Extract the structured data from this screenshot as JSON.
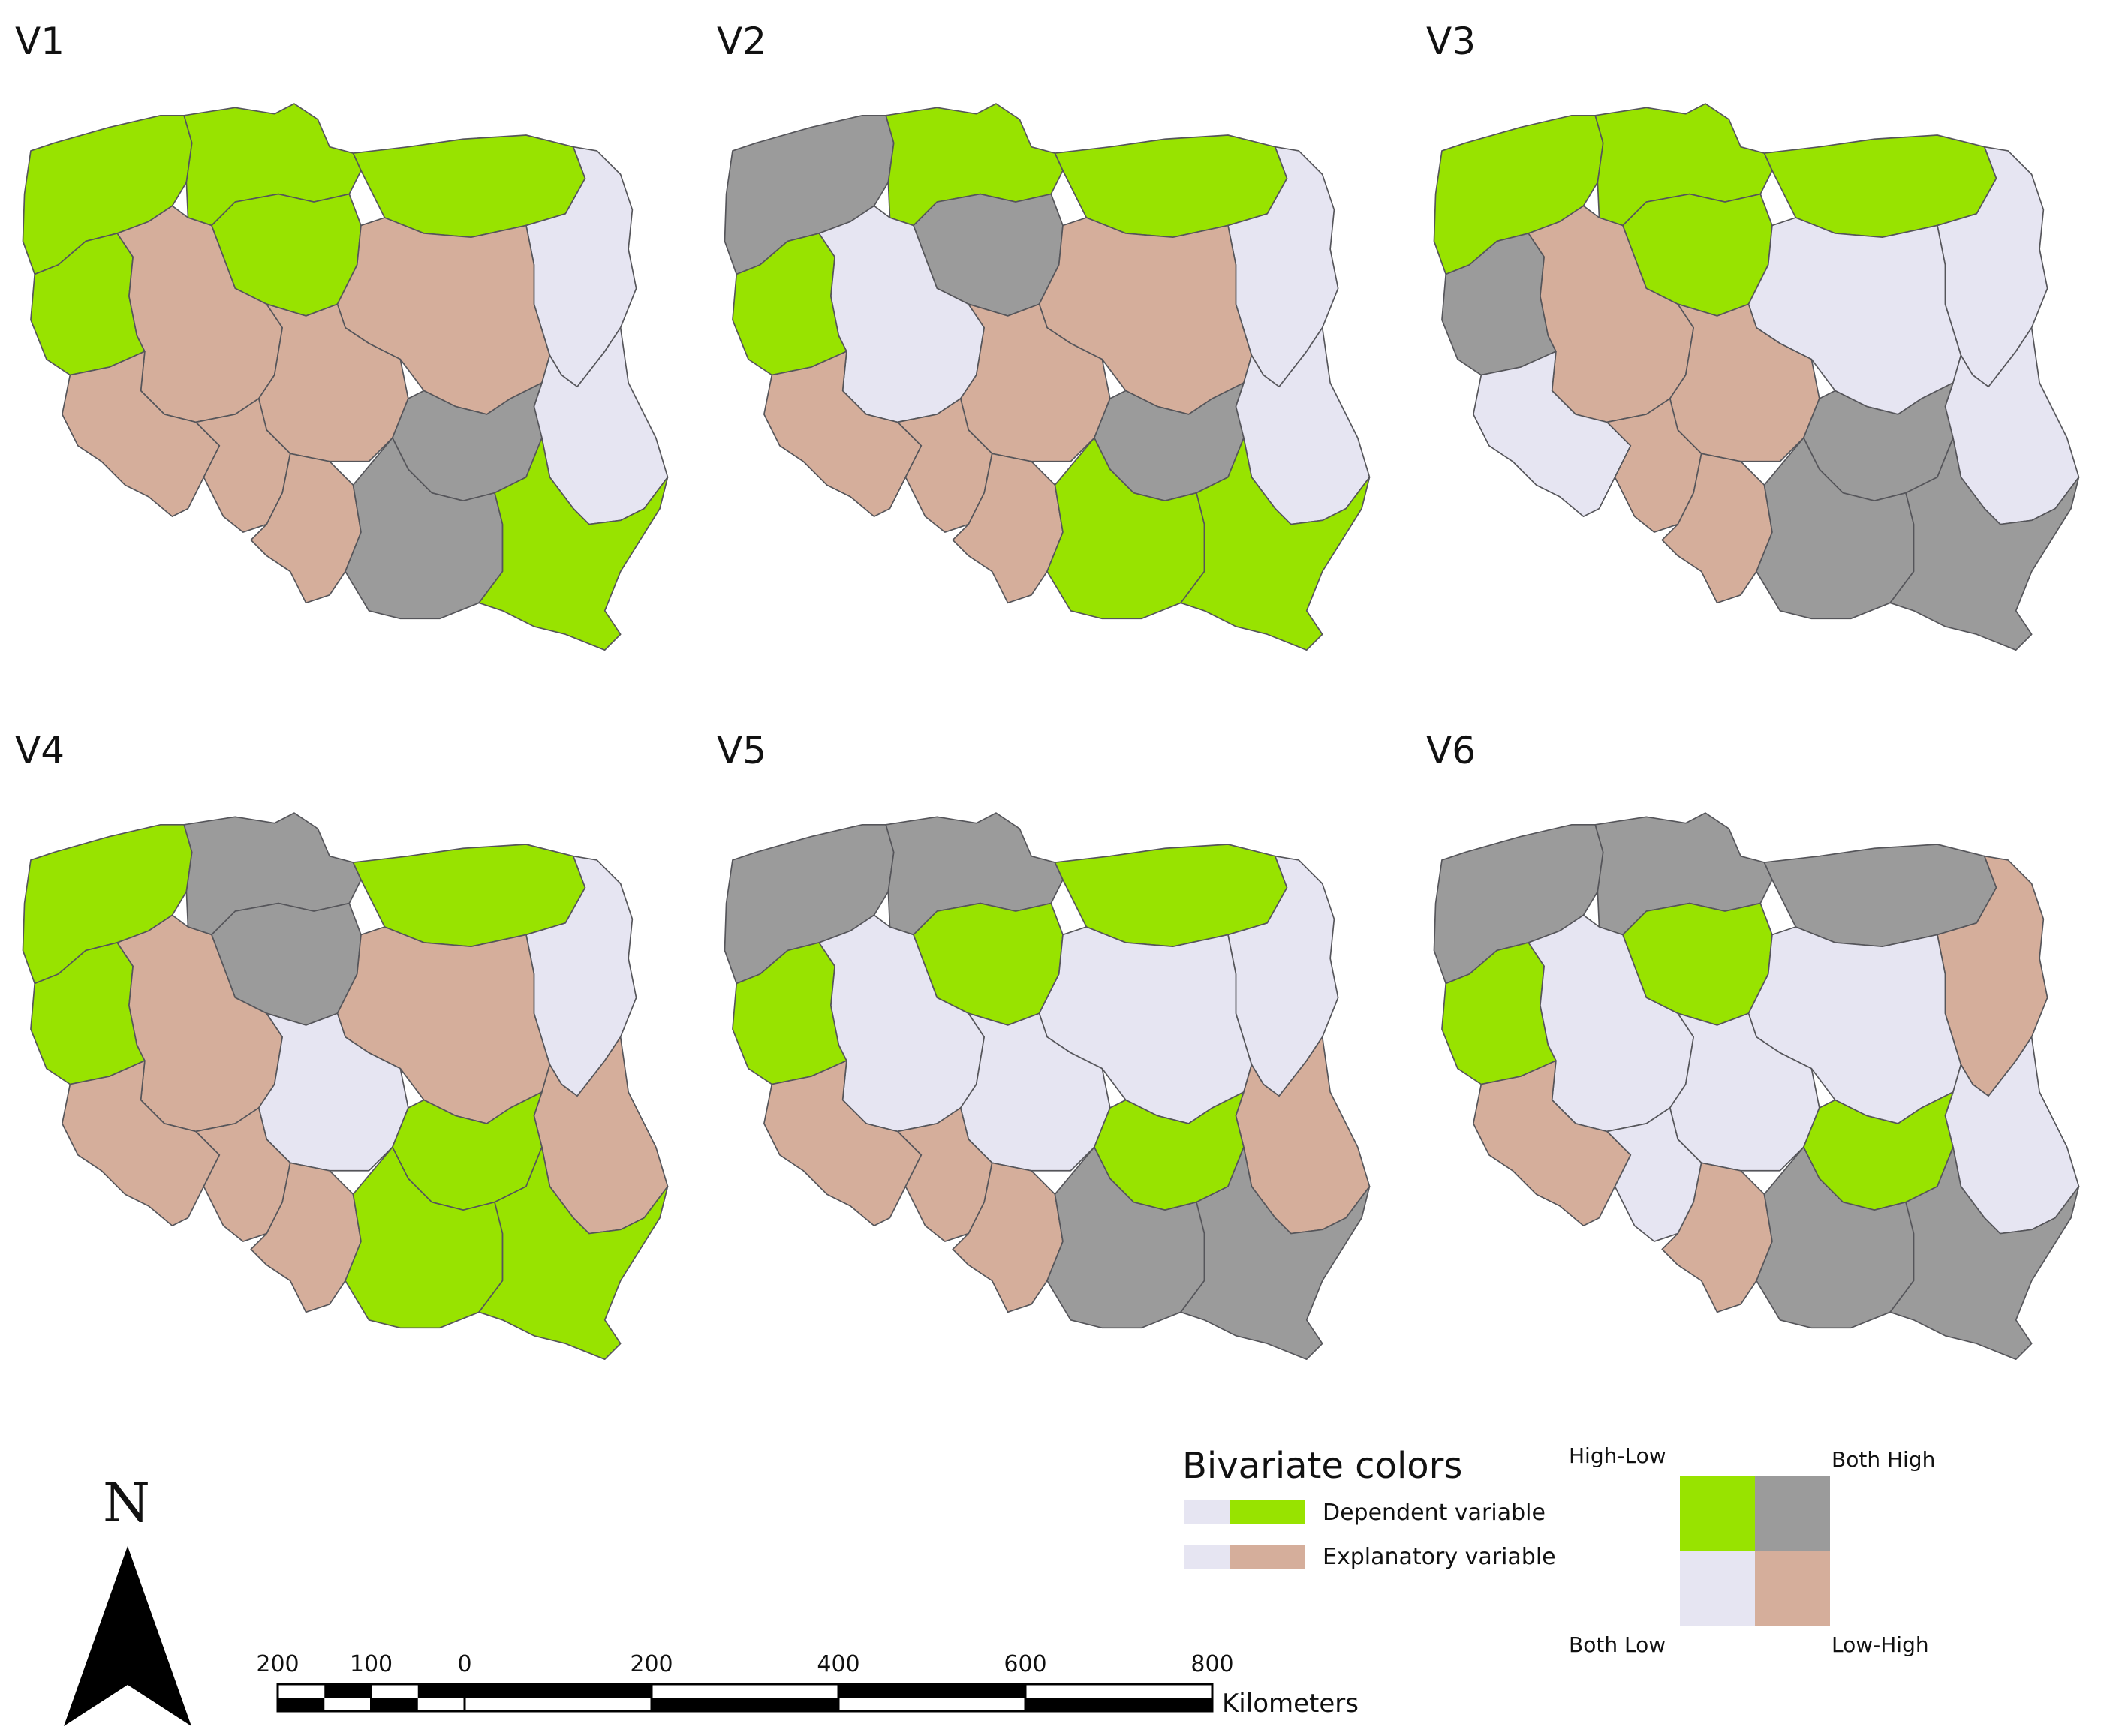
{
  "colors": {
    "high_low": "#98e300",
    "both_high": "#9b9b9b",
    "both_low": "#e6e5f2",
    "low_high": "#d5ae9b",
    "border": "#55555a"
  },
  "region_order": [
    "zachodniopomorskie",
    "pomorskie",
    "warminsko-mazurskie",
    "podlaskie",
    "kujawsko-pomorskie",
    "lubuskie",
    "wielkopolskie",
    "mazowieckie",
    "lodzkie",
    "lubelskie",
    "dolnoslaskie",
    "opolskie",
    "slaskie",
    "swietokrzyskie",
    "malopolskie",
    "podkarpackie"
  ],
  "maps": [
    {
      "label": "V1",
      "classes": [
        "High-Low",
        "High-Low",
        "High-Low",
        "Both Low",
        "High-Low",
        "High-Low",
        "Low-High",
        "Low-High",
        "Low-High",
        "Both Low",
        "Low-High",
        "Low-High",
        "Low-High",
        "Both High",
        "Both High",
        "High-Low"
      ]
    },
    {
      "label": "V2",
      "classes": [
        "Both High",
        "High-Low",
        "High-Low",
        "Both Low",
        "Both High",
        "High-Low",
        "Both Low",
        "Low-High",
        "Low-High",
        "Both Low",
        "Low-High",
        "Low-High",
        "Low-High",
        "Both High",
        "High-Low",
        "High-Low"
      ]
    },
    {
      "label": "V3",
      "classes": [
        "High-Low",
        "High-Low",
        "High-Low",
        "Both Low",
        "High-Low",
        "Both High",
        "Low-High",
        "Both Low",
        "Low-High",
        "Both Low",
        "Both Low",
        "Low-High",
        "Low-High",
        "Both High",
        "Both High",
        "Both High"
      ]
    },
    {
      "label": "V4",
      "classes": [
        "High-Low",
        "Both High",
        "High-Low",
        "Both Low",
        "Both High",
        "High-Low",
        "Low-High",
        "Low-High",
        "Both Low",
        "Low-High",
        "Low-High",
        "Low-High",
        "Low-High",
        "High-Low",
        "High-Low",
        "High-Low"
      ]
    },
    {
      "label": "V5",
      "classes": [
        "Both High",
        "Both High",
        "High-Low",
        "Both Low",
        "High-Low",
        "High-Low",
        "Both Low",
        "Both Low",
        "Both Low",
        "Low-High",
        "Low-High",
        "Low-High",
        "Low-High",
        "High-Low",
        "Both High",
        "Both High"
      ]
    },
    {
      "label": "V6",
      "classes": [
        "Both High",
        "Both High",
        "Both High",
        "Low-High",
        "High-Low",
        "High-Low",
        "Both Low",
        "Both Low",
        "Both Low",
        "Both Low",
        "Low-High",
        "Both Low",
        "Low-High",
        "High-Low",
        "Both High",
        "Both High"
      ]
    }
  ],
  "legend": {
    "title": "Bivariate colors",
    "dependent_label": "Dependent variable",
    "explanatory_label": "Explanatory variable",
    "high_low": "High-Low",
    "both_high": "Both High",
    "both_low": "Both Low",
    "low_high": "Low-High"
  },
  "north_arrow": {
    "letter": "N"
  },
  "scale_bar": {
    "ticks": [
      "200",
      "100",
      "0",
      "200",
      "400",
      "600",
      "800"
    ],
    "tick_values": [
      -200,
      -100,
      0,
      200,
      400,
      600,
      800
    ],
    "unit": "Kilometers"
  }
}
